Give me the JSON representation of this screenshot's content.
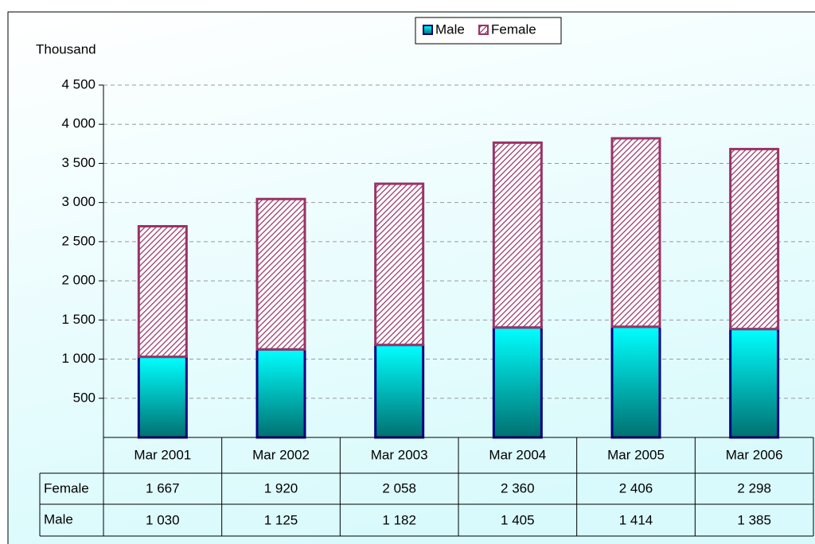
{
  "chart_data": {
    "type": "stacked_bar",
    "y_label": "Thousand",
    "categories": [
      "Mar 2001",
      "Mar 2002",
      "Mar 2003",
      "Mar 2004",
      "Mar 2005",
      "Mar 2006"
    ],
    "series": [
      {
        "name": "Male",
        "color": "#00ffff",
        "values": [
          1030,
          1125,
          1182,
          1405,
          1414,
          1385
        ],
        "value_labels": [
          "1 030",
          "1 125",
          "1 182",
          "1 405",
          "1 414",
          "1 385"
        ]
      },
      {
        "name": "Female",
        "color": "#993366",
        "values": [
          1667,
          1920,
          2058,
          2360,
          2406,
          2298
        ],
        "value_labels": [
          "1 667",
          "1 920",
          "2 058",
          "2 360",
          "2 406",
          "2 298"
        ]
      }
    ],
    "ylim": [
      0,
      4500
    ],
    "yticks": [
      500,
      {
        "value": 1000,
        "label": "1 000"
      },
      {
        "value": 1500,
        "label": "1 500"
      },
      {
        "value": 2000,
        "label": "2 000"
      },
      {
        "value": 2500,
        "label": "2 500"
      },
      {
        "value": 3000,
        "label": "3 000"
      },
      {
        "value": 3500,
        "label": "3 500"
      },
      {
        "value": 4000,
        "label": "4 000"
      },
      {
        "value": 4500,
        "label": "4 500"
      }
    ],
    "grid": true,
    "legend": "top"
  }
}
